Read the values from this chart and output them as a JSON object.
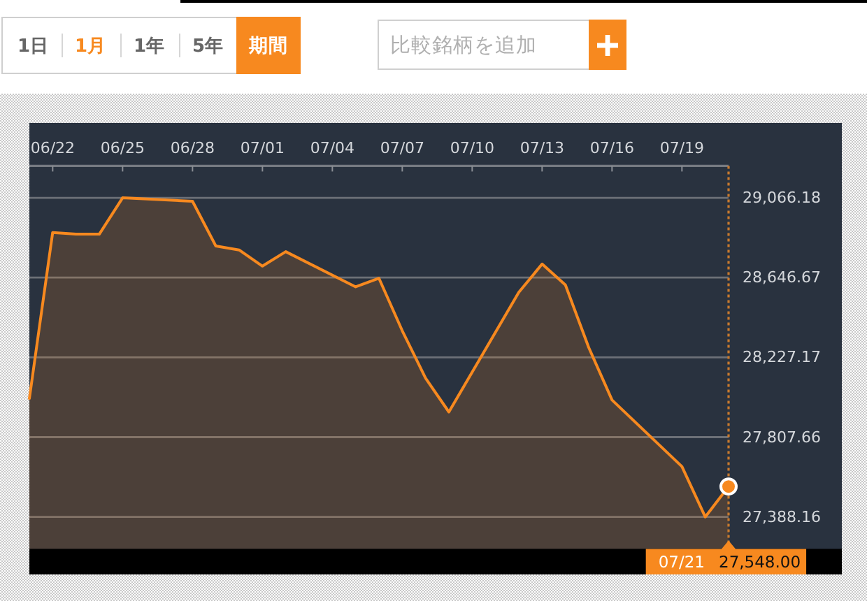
{
  "chart_data": {
    "type": "area",
    "x": [
      "--06-21",
      "--06-22",
      "--06-23",
      "--06-24",
      "--06-25",
      "--06-28",
      "--06-29",
      "--06-30",
      "--07-01",
      "--07-02",
      "--07-05",
      "--07-06",
      "--07-07",
      "--07-08",
      "--07-09",
      "--07-12",
      "--07-13",
      "--07-14",
      "--07-15",
      "--07-16",
      "--07-19",
      "--07-20",
      "--07-21"
    ],
    "series": [
      {
        "color": "#f7891f",
        "values": [
          28011,
          28884,
          28875,
          28875,
          29066,
          29048,
          28813,
          28792,
          28707,
          28783,
          28598,
          28643,
          28367,
          28118,
          27940,
          28569,
          28718,
          28608,
          28279,
          28003,
          27653,
          27388,
          27548
        ]
      },
      {
        "type": "scatter",
        "x": [
          "--07-21"
        ],
        "color": "#f7891f",
        "values": [
          27548
        ]
      }
    ],
    "xlim": [
      "--06-21",
      "--07-21"
    ],
    "xticks": [
      {
        "value": "--06-22",
        "label": "06/22"
      },
      {
        "value": "--06-25",
        "label": "06/25"
      },
      {
        "value": "--06-28",
        "label": "06/28"
      },
      {
        "value": "--07-01",
        "label": "07/01"
      },
      {
        "value": "--07-04",
        "label": "07/04"
      },
      {
        "value": "--07-07",
        "label": "07/07"
      },
      {
        "value": "--07-10",
        "label": "07/10"
      },
      {
        "value": "--07-13",
        "label": "07/13"
      },
      {
        "value": "--07-16",
        "label": "07/16"
      },
      {
        "value": "--07-19",
        "label": "07/19"
      }
    ],
    "ylim": [
      27220,
      29234
    ],
    "yticks": [
      {
        "value": 27388.16,
        "label": "27,388.16"
      },
      {
        "value": 27807.66,
        "label": "27,807.66"
      },
      {
        "value": 28227.17,
        "label": "28,227.17"
      },
      {
        "value": 28646.67,
        "label": "28,646.67"
      },
      {
        "value": 29066.18,
        "label": "29,066.18"
      }
    ],
    "grid": "y",
    "ref_lines": [
      {
        "axis": "x",
        "value": "--07-21",
        "label": "07/21",
        "color": "#c97a2e",
        "line_style": "dotted"
      }
    ],
    "annotations": [
      "1日",
      "1月",
      "1年",
      "5年",
      "期間",
      "比較銘柄を追加",
      "27,548.00"
    ]
  }
}
